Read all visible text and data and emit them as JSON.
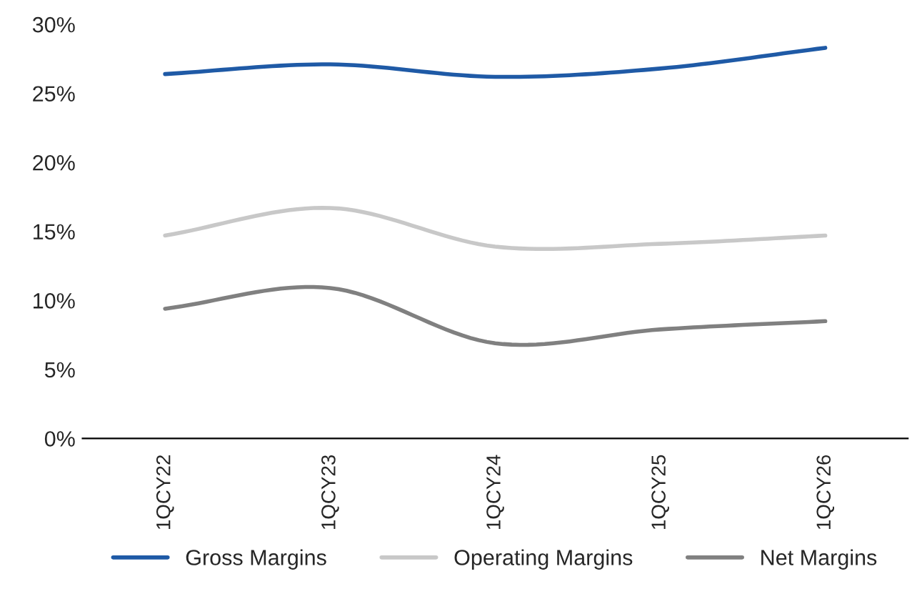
{
  "chart_data": {
    "type": "line",
    "categories": [
      "1QCY22",
      "1QCY23",
      "1QCY24",
      "1QCY25",
      "1QCY26"
    ],
    "series": [
      {
        "name": "Gross Margins",
        "color": "#1f5aa6",
        "values": [
          26.4,
          27.1,
          26.2,
          26.8,
          28.3
        ]
      },
      {
        "name": "Operating Margins",
        "color": "#c8c8c8",
        "values": [
          14.7,
          16.7,
          13.9,
          14.1,
          14.7
        ]
      },
      {
        "name": "Net Margins",
        "color": "#808080",
        "values": [
          9.4,
          10.9,
          6.9,
          7.9,
          8.5
        ]
      }
    ],
    "ylim": [
      0,
      30
    ],
    "yticks": [
      {
        "value": 0,
        "label": "0%"
      },
      {
        "value": 5,
        "label": "5%"
      },
      {
        "value": 10,
        "label": "10%"
      },
      {
        "value": 15,
        "label": "15%"
      },
      {
        "value": 20,
        "label": "20%"
      },
      {
        "value": 25,
        "label": "25%"
      },
      {
        "value": 30,
        "label": "30%"
      }
    ],
    "grid": false,
    "legend": "bottom",
    "marker": "none",
    "line_style": "solid"
  }
}
